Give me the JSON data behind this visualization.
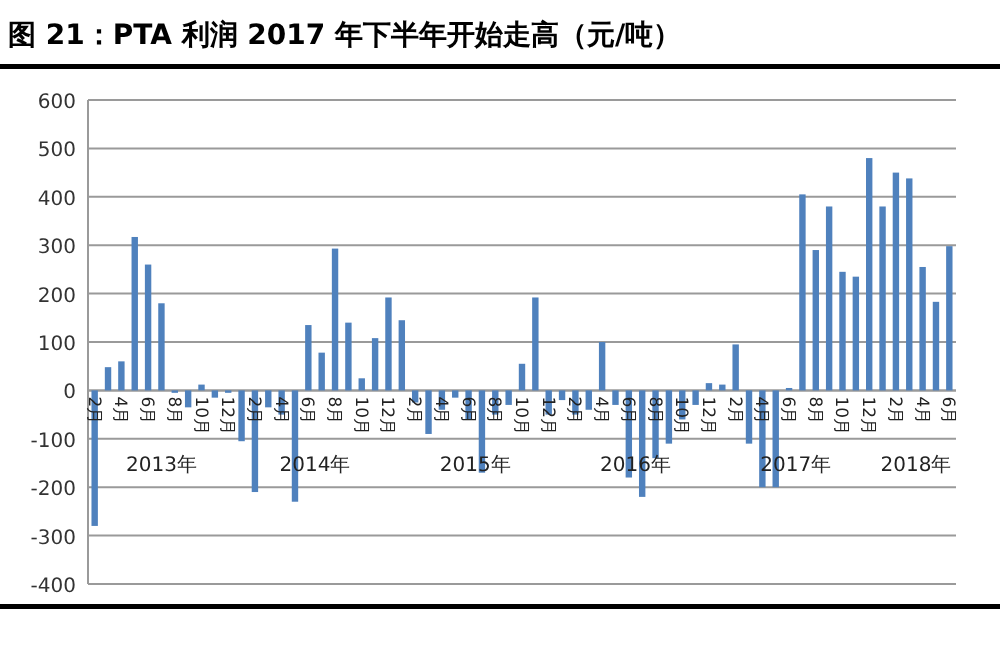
{
  "chart_data": {
    "type": "bar",
    "title": "图 21：PTA 利润 2017 年下半年开始走高（元/吨）",
    "categories": [
      "2月",
      null,
      "4月",
      null,
      "6月",
      null,
      "8月",
      null,
      "10月",
      null,
      "12月",
      null,
      "2月",
      null,
      "4月",
      null,
      "6月",
      null,
      "8月",
      null,
      "10月",
      null,
      "12月",
      null,
      "2月",
      null,
      "4月",
      null,
      "6月",
      null,
      "8月",
      null,
      "10月",
      null,
      "12月",
      null,
      "2月",
      null,
      "4月",
      null,
      "6月",
      null,
      "8月",
      null,
      "10月",
      null,
      "12月",
      null,
      "2月",
      null,
      "4月",
      null,
      "6月",
      null,
      "8月",
      null,
      "10月",
      null,
      "12月",
      null,
      "2月",
      null,
      "4月",
      null,
      "6月"
    ],
    "values": [
      -280,
      48,
      60,
      317,
      260,
      180,
      -5,
      -35,
      12,
      -15,
      -5,
      -105,
      -210,
      -35,
      -50,
      -230,
      135,
      78,
      293,
      140,
      25,
      108,
      192,
      145,
      -25,
      -90,
      -40,
      -15,
      -60,
      -170,
      -50,
      -30,
      55,
      192,
      -50,
      -20,
      -50,
      -40,
      100,
      -30,
      -180,
      -220,
      -140,
      -110,
      -60,
      -30,
      15,
      12,
      95,
      -110,
      -200,
      -200,
      5,
      405,
      290,
      380,
      245,
      235,
      480,
      380,
      450,
      438,
      255,
      183,
      298
    ],
    "color": "#4f81bd",
    "ylim": [
      -400,
      600
    ],
    "yticks": [
      -400,
      -300,
      -200,
      -100,
      0,
      100,
      200,
      300,
      400,
      500,
      600
    ],
    "grid": "y",
    "annotations": [
      "2013年",
      "2014年",
      "2015年",
      "2016年",
      "2017年",
      "2018年"
    ]
  }
}
